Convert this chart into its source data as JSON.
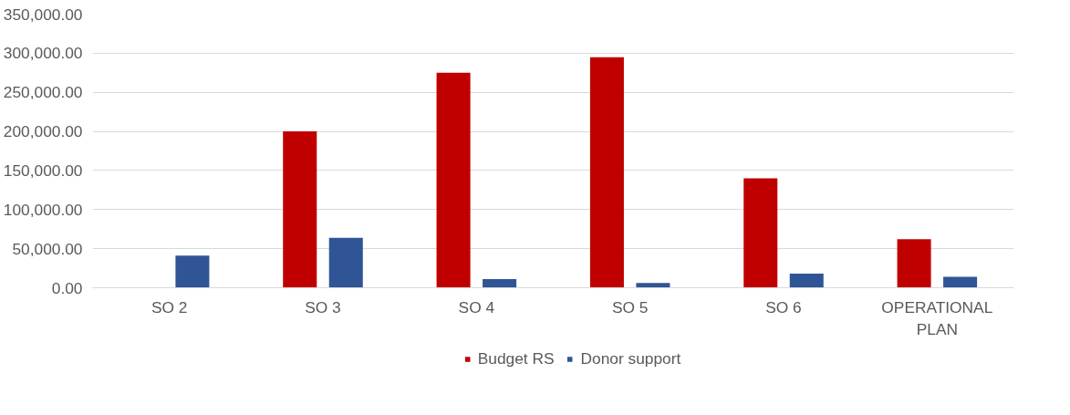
{
  "chart_data": {
    "type": "bar",
    "categories": [
      "SO 2",
      "SO 3",
      "SO 4",
      "SO 5",
      "SO 6",
      "OPERATIONAL PLAN"
    ],
    "series": [
      {
        "name": "Budget RS",
        "color": "#c00000",
        "values": [
          0,
          200000,
          275000,
          295000,
          140000,
          62000
        ]
      },
      {
        "name": "Donor support",
        "color": "#2f5597",
        "values": [
          41000,
          64000,
          11000,
          6000,
          18000,
          14000
        ]
      }
    ],
    "ylim": [
      0,
      350000
    ],
    "yticks": [
      {
        "value": 0,
        "label": "0.00"
      },
      {
        "value": 50000,
        "label": "50,000.00"
      },
      {
        "value": 100000,
        "label": "100,000.00"
      },
      {
        "value": 150000,
        "label": "150,000.00"
      },
      {
        "value": 200000,
        "label": "200,000.00"
      },
      {
        "value": 250000,
        "label": "250,000.00"
      },
      {
        "value": 300000,
        "label": "300,000.00"
      },
      {
        "value": 350000,
        "label": "350,000.00"
      }
    ],
    "grid": "y",
    "legend": "bottom"
  }
}
